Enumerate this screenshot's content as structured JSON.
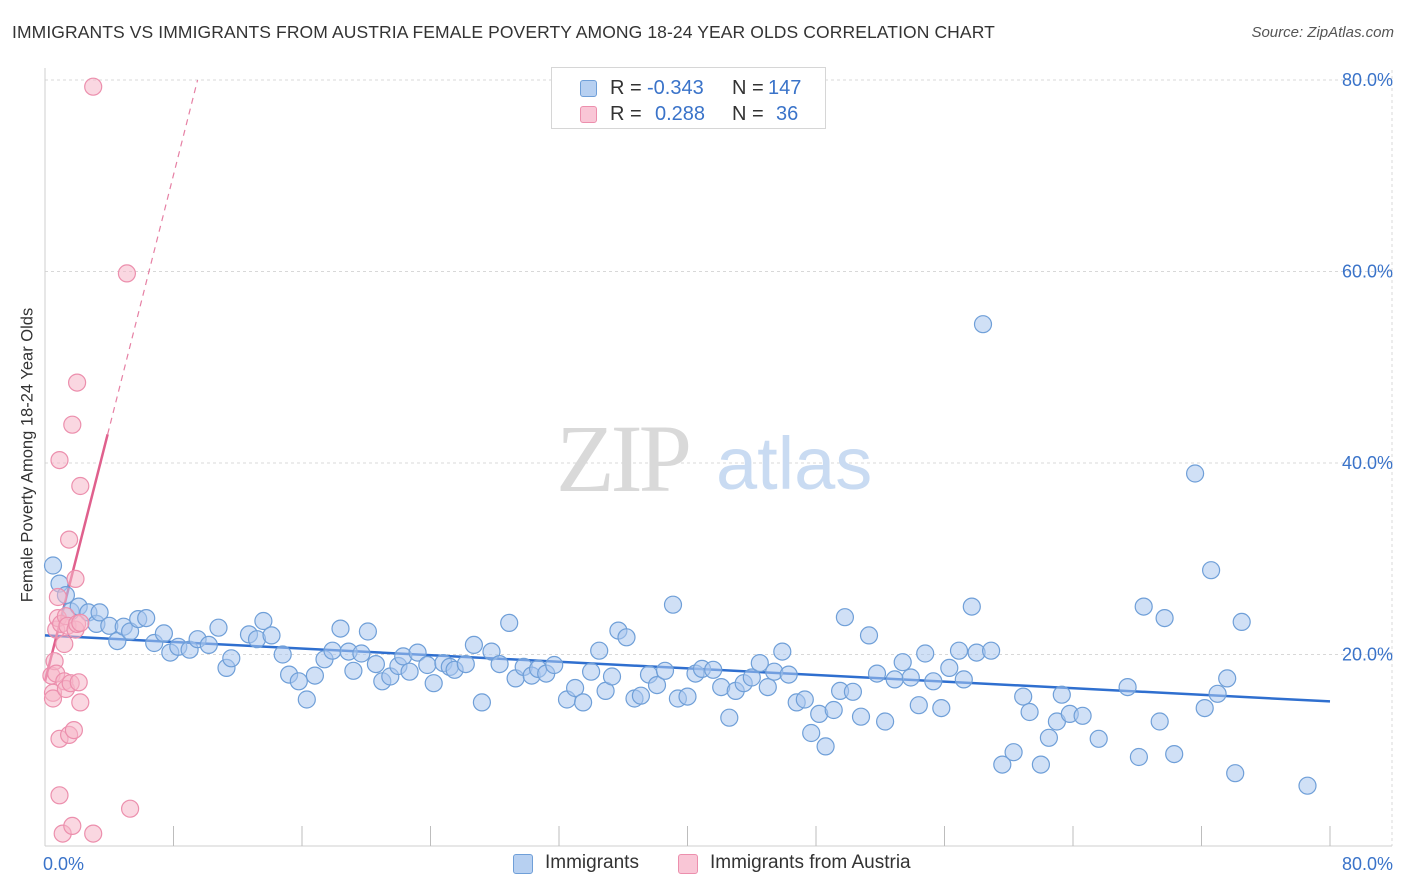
{
  "title": "IMMIGRANTS VS IMMIGRANTS FROM AUSTRIA FEMALE POVERTY AMONG 18-24 YEAR OLDS CORRELATION CHART",
  "source": "Source: ZipAtlas.com",
  "watermark": {
    "zip": "ZIP",
    "atlas": "atlas"
  },
  "colors": {
    "blue_fill": "#a9c6ee",
    "blue_stroke": "#6f9fd8",
    "blue_line": "#2f6fcf",
    "pink_fill": "#f6b6c9",
    "pink_stroke": "#ec8fad",
    "pink_line": "#e0608d",
    "axis_text": "#3a73c9",
    "grid": "#d8d8d8"
  },
  "legend_top": [
    {
      "swatch": "blue",
      "r_label": "R =",
      "r_value": "-0.343",
      "n_label": "N =",
      "n_value": "147"
    },
    {
      "swatch": "pink",
      "r_label": "R =",
      "r_value": "0.288",
      "n_label": "N =",
      "n_value": "36"
    }
  ],
  "legend_bottom": [
    {
      "swatch": "blue",
      "label": "Immigrants"
    },
    {
      "swatch": "pink",
      "label": "Immigrants from Austria"
    }
  ],
  "chart_data": {
    "type": "scatter",
    "ylabel": "Female Poverty Among 18-24 Year Olds",
    "xlabel": "",
    "xlim": [
      0,
      80
    ],
    "ylim": [
      0,
      80
    ],
    "x_tick_labels": [
      {
        "value": 0,
        "label": "0.0%"
      },
      {
        "value": 80,
        "label": "80.0%"
      }
    ],
    "y_tick_labels": [
      {
        "value": 20,
        "label": "20.0%"
      },
      {
        "value": 40,
        "label": "40.0%"
      },
      {
        "value": 60,
        "label": "60.0%"
      },
      {
        "value": 80,
        "label": "80.0%"
      }
    ],
    "grid": true,
    "series": [
      {
        "name": "Immigrants",
        "color": "blue",
        "trend": {
          "x": [
            0,
            80
          ],
          "y": [
            22.0,
            15.1
          ],
          "style": "solid"
        },
        "points": [
          [
            0.5,
            29.3
          ],
          [
            0.9,
            27.4
          ],
          [
            1.3,
            26.2
          ],
          [
            1.6,
            24.5
          ],
          [
            2.1,
            25.0
          ],
          [
            2.7,
            24.4
          ],
          [
            3.2,
            23.2
          ],
          [
            3.4,
            24.4
          ],
          [
            4.0,
            23.0
          ],
          [
            4.5,
            21.4
          ],
          [
            4.9,
            22.9
          ],
          [
            5.3,
            22.4
          ],
          [
            5.8,
            23.7
          ],
          [
            6.3,
            23.8
          ],
          [
            6.8,
            21.2
          ],
          [
            7.4,
            22.2
          ],
          [
            7.8,
            20.2
          ],
          [
            8.3,
            20.8
          ],
          [
            9.0,
            20.5
          ],
          [
            9.5,
            21.6
          ],
          [
            10.2,
            21.0
          ],
          [
            10.8,
            22.8
          ],
          [
            11.3,
            18.6
          ],
          [
            11.6,
            19.6
          ],
          [
            12.7,
            22.1
          ],
          [
            13.2,
            21.6
          ],
          [
            13.6,
            23.5
          ],
          [
            14.1,
            22.0
          ],
          [
            14.8,
            20.0
          ],
          [
            15.2,
            17.9
          ],
          [
            15.8,
            17.2
          ],
          [
            16.3,
            15.3
          ],
          [
            16.8,
            17.8
          ],
          [
            17.4,
            19.5
          ],
          [
            17.9,
            20.4
          ],
          [
            18.4,
            22.7
          ],
          [
            18.9,
            20.3
          ],
          [
            19.2,
            18.3
          ],
          [
            19.7,
            20.1
          ],
          [
            20.1,
            22.4
          ],
          [
            20.6,
            19.0
          ],
          [
            21.0,
            17.2
          ],
          [
            21.5,
            17.7
          ],
          [
            22.0,
            18.8
          ],
          [
            22.3,
            19.8
          ],
          [
            22.7,
            18.2
          ],
          [
            23.2,
            20.2
          ],
          [
            23.8,
            18.9
          ],
          [
            24.2,
            17.0
          ],
          [
            24.8,
            19.1
          ],
          [
            25.2,
            18.7
          ],
          [
            25.5,
            18.4
          ],
          [
            26.2,
            19.0
          ],
          [
            26.7,
            21.0
          ],
          [
            27.2,
            15.0
          ],
          [
            27.8,
            20.3
          ],
          [
            28.3,
            19.0
          ],
          [
            28.9,
            23.3
          ],
          [
            29.3,
            17.5
          ],
          [
            29.8,
            18.7
          ],
          [
            30.3,
            17.8
          ],
          [
            30.7,
            18.5
          ],
          [
            31.2,
            18.0
          ],
          [
            31.7,
            18.9
          ],
          [
            32.5,
            15.3
          ],
          [
            33.0,
            16.5
          ],
          [
            33.5,
            15.0
          ],
          [
            34.0,
            18.2
          ],
          [
            34.5,
            20.4
          ],
          [
            34.9,
            16.2
          ],
          [
            35.3,
            17.7
          ],
          [
            35.7,
            22.5
          ],
          [
            36.2,
            21.8
          ],
          [
            36.7,
            15.4
          ],
          [
            37.1,
            15.7
          ],
          [
            37.6,
            17.9
          ],
          [
            38.1,
            16.8
          ],
          [
            38.6,
            18.3
          ],
          [
            39.1,
            25.2
          ],
          [
            39.4,
            15.4
          ],
          [
            40.0,
            15.6
          ],
          [
            40.5,
            18.0
          ],
          [
            40.9,
            18.5
          ],
          [
            41.6,
            18.4
          ],
          [
            42.1,
            16.6
          ],
          [
            42.6,
            13.4
          ],
          [
            43.0,
            16.2
          ],
          [
            43.5,
            17.0
          ],
          [
            44.0,
            17.6
          ],
          [
            44.5,
            19.1
          ],
          [
            45.0,
            16.6
          ],
          [
            45.4,
            18.2
          ],
          [
            45.9,
            20.3
          ],
          [
            46.3,
            17.9
          ],
          [
            46.8,
            15.0
          ],
          [
            47.3,
            15.3
          ],
          [
            47.7,
            11.8
          ],
          [
            48.2,
            13.8
          ],
          [
            48.6,
            10.4
          ],
          [
            49.1,
            14.2
          ],
          [
            49.5,
            16.2
          ],
          [
            49.8,
            23.9
          ],
          [
            50.3,
            16.1
          ],
          [
            50.8,
            13.5
          ],
          [
            51.3,
            22.0
          ],
          [
            51.8,
            18.0
          ],
          [
            52.3,
            13.0
          ],
          [
            52.9,
            17.4
          ],
          [
            53.4,
            19.2
          ],
          [
            53.9,
            17.6
          ],
          [
            54.4,
            14.7
          ],
          [
            54.8,
            20.1
          ],
          [
            55.3,
            17.2
          ],
          [
            55.8,
            14.4
          ],
          [
            56.3,
            18.6
          ],
          [
            56.9,
            20.4
          ],
          [
            57.2,
            17.4
          ],
          [
            57.7,
            25.0
          ],
          [
            58.0,
            20.2
          ],
          [
            58.4,
            54.5
          ],
          [
            58.9,
            20.4
          ],
          [
            59.6,
            8.5
          ],
          [
            60.3,
            9.8
          ],
          [
            60.9,
            15.6
          ],
          [
            61.3,
            14.0
          ],
          [
            62.0,
            8.5
          ],
          [
            62.5,
            11.3
          ],
          [
            63.0,
            13.0
          ],
          [
            63.3,
            15.8
          ],
          [
            63.8,
            13.8
          ],
          [
            64.6,
            13.6
          ],
          [
            65.6,
            11.2
          ],
          [
            67.4,
            16.6
          ],
          [
            68.1,
            9.3
          ],
          [
            68.4,
            25.0
          ],
          [
            69.4,
            13.0
          ],
          [
            69.7,
            23.8
          ],
          [
            70.3,
            9.6
          ],
          [
            71.6,
            38.9
          ],
          [
            72.2,
            14.4
          ],
          [
            72.6,
            28.8
          ],
          [
            73.0,
            15.9
          ],
          [
            73.6,
            17.5
          ],
          [
            74.1,
            7.6
          ],
          [
            74.5,
            23.4
          ],
          [
            78.6,
            6.3
          ]
        ]
      },
      {
        "name": "Immigrants from Austria",
        "color": "pink",
        "trend": {
          "x": [
            0,
            3.9
          ],
          "y": [
            17.2,
            43.0
          ],
          "style": "solid",
          "extended_x": [
            3.9,
            9.5
          ],
          "extended_y": [
            43.0,
            80.0
          ],
          "extended_style": "dashed"
        },
        "points": [
          [
            0.4,
            17.8
          ],
          [
            0.5,
            16.0
          ],
          [
            0.5,
            15.4
          ],
          [
            0.6,
            19.3
          ],
          [
            0.7,
            22.6
          ],
          [
            0.7,
            18.0
          ],
          [
            0.8,
            23.8
          ],
          [
            0.8,
            26.0
          ],
          [
            0.9,
            40.3
          ],
          [
            0.9,
            11.2
          ],
          [
            0.9,
            5.3
          ],
          [
            1.0,
            23.2
          ],
          [
            1.1,
            1.3
          ],
          [
            1.2,
            17.2
          ],
          [
            1.2,
            21.1
          ],
          [
            1.3,
            24.0
          ],
          [
            1.3,
            16.4
          ],
          [
            1.4,
            23.0
          ],
          [
            1.5,
            32.0
          ],
          [
            1.5,
            11.6
          ],
          [
            1.6,
            17.0
          ],
          [
            1.7,
            2.1
          ],
          [
            1.7,
            44.0
          ],
          [
            1.8,
            12.1
          ],
          [
            1.9,
            27.9
          ],
          [
            1.9,
            22.6
          ],
          [
            2.0,
            23.2
          ],
          [
            2.0,
            48.4
          ],
          [
            2.1,
            17.1
          ],
          [
            2.2,
            37.6
          ],
          [
            2.2,
            15.0
          ],
          [
            2.2,
            23.3
          ],
          [
            3.0,
            79.3
          ],
          [
            3.0,
            1.3
          ],
          [
            5.1,
            59.8
          ],
          [
            5.3,
            3.9
          ]
        ]
      }
    ]
  }
}
